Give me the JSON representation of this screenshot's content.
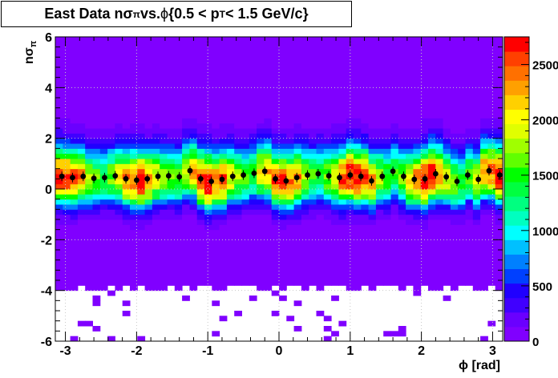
{
  "title": {
    "prefix": "East Data n",
    "sigma": "σ",
    "pi": "π",
    "middle": " vs. ",
    "phi": "ϕ",
    "range": " {0.5 < p",
    "sub_T": "T",
    "suffix": " < 1.5 GeV/c}"
  },
  "chart_data": {
    "type": "heatmap",
    "xlabel": "ϕ [rad]",
    "ylabel_main": "nσ",
    "ylabel_sub": "π",
    "xlim": [
      -3.1416,
      3.1416
    ],
    "ylim": [
      -6,
      6
    ],
    "x_ticks": [
      -3,
      -2,
      -1,
      0,
      1,
      2,
      3
    ],
    "x_tick_labels": [
      "-3",
      "-2",
      "-1",
      "0",
      "1",
      "2",
      "3"
    ],
    "y_ticks": [
      -6,
      -4,
      -2,
      0,
      2,
      4,
      6
    ],
    "y_tick_labels": [
      "-6",
      "-4",
      "-2",
      "0",
      "2",
      "4",
      "6"
    ],
    "color_scale": {
      "min": 0,
      "max": 2750,
      "ticks": [
        0,
        500,
        1000,
        1500,
        2000,
        2500
      ],
      "tick_labels": [
        "0",
        "500",
        "1000",
        "1500",
        "2000",
        "2500"
      ],
      "palette": [
        "#8000ff",
        "#6a00ff",
        "#4000ff",
        "#2000ff",
        "#0040ff",
        "#0080ff",
        "#00c0ff",
        "#00ffff",
        "#00ffc0",
        "#00ff80",
        "#00ff40",
        "#00ff00",
        "#60ff00",
        "#a0ff00",
        "#e0ff00",
        "#ffff00",
        "#ffd000",
        "#ffa000",
        "#ff7000",
        "#ff4000",
        "#ff0000"
      ]
    },
    "grid": true,
    "profile_points": {
      "name": "mean",
      "x": [
        -3.05,
        -2.9,
        -2.75,
        -2.6,
        -2.45,
        -2.3,
        -2.15,
        -2.0,
        -1.85,
        -1.7,
        -1.55,
        -1.4,
        -1.25,
        -1.1,
        -0.95,
        -0.8,
        -0.65,
        -0.5,
        -0.35,
        -0.2,
        -0.05,
        0.1,
        0.25,
        0.4,
        0.55,
        0.7,
        0.85,
        1.0,
        1.15,
        1.3,
        1.45,
        1.6,
        1.75,
        1.9,
        2.05,
        2.2,
        2.35,
        2.5,
        2.65,
        2.8,
        2.95,
        3.1
      ],
      "y": [
        0.5,
        0.45,
        0.5,
        0.42,
        0.45,
        0.52,
        0.4,
        0.35,
        0.4,
        0.5,
        0.52,
        0.48,
        0.72,
        0.4,
        0.3,
        0.38,
        0.5,
        0.55,
        0.62,
        0.7,
        0.4,
        0.32,
        0.45,
        0.55,
        0.6,
        0.52,
        0.45,
        0.55,
        0.5,
        0.32,
        0.5,
        0.7,
        0.5,
        0.38,
        0.4,
        0.6,
        0.48,
        0.3,
        0.55,
        0.38,
        0.72,
        0.55
      ]
    }
  }
}
